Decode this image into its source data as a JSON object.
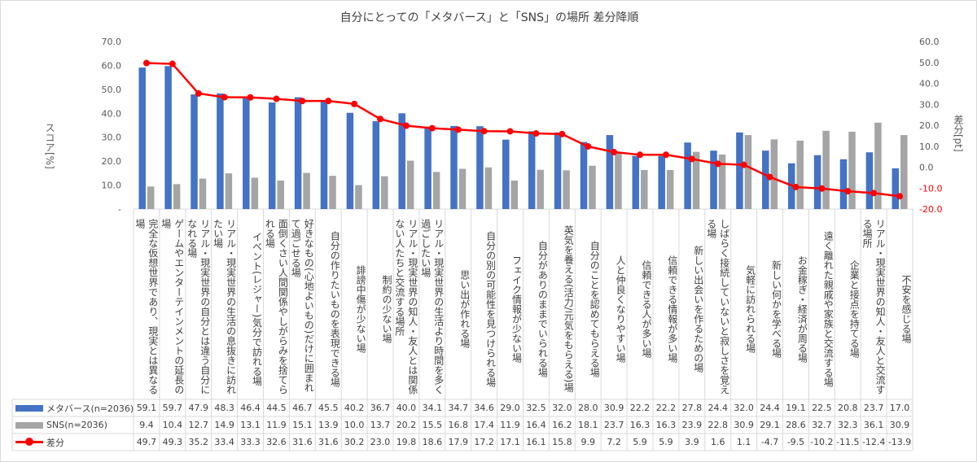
{
  "chart_data": {
    "type": "bar+line",
    "title": "自分にとっての「メタバース」と「SNS」の場所 差分降順",
    "ylabel": "スコア[%]",
    "y2label": "差分[pt]",
    "ylim": [
      0,
      70
    ],
    "y2lim": [
      -20,
      60
    ],
    "yticks": [
      "-",
      "10.0",
      "20.0",
      "30.0",
      "40.0",
      "50.0",
      "60.0",
      "70.0"
    ],
    "y2ticks": [
      "-20.0",
      "-10.0",
      "0.0",
      "10.0",
      "20.0",
      "30.0",
      "40.0",
      "50.0",
      "60.0"
    ],
    "legend_placement": "data-table",
    "categories": [
      "完全な仮想世界であり、現実とは異なる場",
      "ゲームやエンターテインメントの延長の場",
      "リアル・現実世界の自分とは違う自分になれる場",
      "リアル・現実世界の生活の息抜きに訪れたい場",
      "イベント(レジャー)気分で訪れる場",
      "面倒くさい人間関係やしがらみを捨てられる場",
      "好きなもの(心地よいもの)だけに囲まれて過ごせる場",
      "自分の作りたいものを表現できる場",
      "誹謗中傷が少ない場",
      "制約の少ない場",
      "リアル・現実世界の知人・友人とは関係ない人たちと交流する場所",
      "リアル・現実世界の生活より時間を多く過ごしたい場",
      "思い出が作れる場",
      "自分の別の可能性を見つけられる場",
      "フェイク情報が少ない場",
      "自分がありのままでいられる場",
      "英気を養える(活力/元気をもらえる)場",
      "自分のことを認めてもらえる場",
      "人と仲良くなりやすい場",
      "信頼できる人が多い場",
      "信頼できる情報が多い場",
      "新しい出会いを作るための場",
      "しばらく接続していないと寂しさを覚える場",
      "気軽に訪れられる場",
      "新しい何かを学べる場",
      "お金稼ぎ・経済が周る場",
      "遠く離れた親戚や家族と交流する場",
      "企業と接点を持てる場",
      "リアル・現実世界の知人・友人と交流する場所",
      "不安を感じる場"
    ],
    "series": [
      {
        "name": "メタバース(n=2036)",
        "type": "bar",
        "axis": "left",
        "color": "#4472c4",
        "values": [
          59.1,
          59.7,
          47.9,
          48.3,
          46.4,
          44.5,
          46.7,
          45.5,
          40.2,
          36.7,
          40.0,
          34.1,
          34.7,
          34.6,
          29.0,
          32.5,
          32.0,
          28.0,
          30.9,
          22.2,
          22.2,
          27.8,
          24.4,
          32.0,
          24.4,
          19.1,
          22.5,
          20.8,
          23.7,
          17.0
        ]
      },
      {
        "name": "SNS(n=2036)",
        "type": "bar",
        "axis": "left",
        "color": "#a5a5a5",
        "values": [
          9.4,
          10.4,
          12.7,
          14.9,
          13.1,
          11.9,
          15.1,
          13.9,
          10.0,
          13.7,
          20.2,
          15.5,
          16.8,
          17.4,
          11.9,
          16.4,
          16.2,
          18.1,
          23.7,
          16.3,
          16.3,
          23.9,
          22.8,
          30.9,
          29.1,
          28.6,
          32.7,
          32.3,
          36.1,
          30.9
        ]
      },
      {
        "name": "差分",
        "type": "line",
        "axis": "right",
        "color": "#ff0000",
        "values": [
          49.7,
          49.3,
          35.2,
          33.4,
          33.3,
          32.6,
          31.6,
          31.6,
          30.2,
          23.0,
          19.8,
          18.6,
          17.9,
          17.2,
          17.1,
          16.1,
          15.8,
          9.9,
          7.2,
          5.9,
          5.9,
          3.9,
          1.6,
          1.1,
          -4.7,
          -9.5,
          -10.2,
          -11.5,
          -12.4,
          -13.9
        ]
      }
    ],
    "grid": false
  }
}
